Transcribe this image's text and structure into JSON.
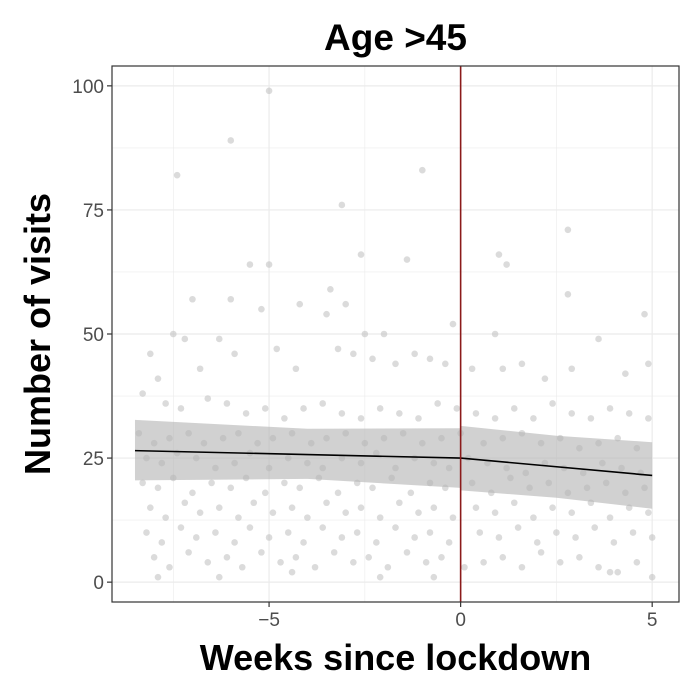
{
  "chart_data": {
    "type": "scatter",
    "title": "Age >45",
    "xlabel": "Weeks since lockdown",
    "ylabel": "Number of visits",
    "xlim": [
      -9.1,
      5.7
    ],
    "ylim": [
      -4,
      104
    ],
    "x_ticks": [
      -5,
      0,
      5
    ],
    "x_tick_labels": [
      "−5",
      "0",
      "5"
    ],
    "y_ticks": [
      0,
      25,
      50,
      75,
      100
    ],
    "y_tick_labels": [
      "0",
      "25",
      "50",
      "75",
      "100"
    ],
    "grid": true,
    "legend": "none",
    "cutoff_x": 0,
    "colors": {
      "points": "#bdbdbd",
      "ribbon": "#b3b3b3",
      "fit_line": "#000000",
      "cutoff_line": "#8b1a1a",
      "grid": "#ebebeb",
      "panel_border": "#333333"
    },
    "fit_line": [
      {
        "x": -8.5,
        "y": 26.5
      },
      {
        "x": 0,
        "y": 25
      },
      {
        "x": 5,
        "y": 21.5
      }
    ],
    "ribbon": [
      {
        "x": -8.5,
        "lo": 20.5,
        "hi": 32.7
      },
      {
        "x": -4,
        "lo": 20.8,
        "hi": 30.9
      },
      {
        "x": 0,
        "lo": 19,
        "hi": 31
      },
      {
        "x": 0,
        "lo": 18.5,
        "hi": 31.5
      },
      {
        "x": 2.5,
        "lo": 17,
        "hi": 29.5
      },
      {
        "x": 5,
        "lo": 14.8,
        "hi": 28.2
      }
    ],
    "points": [
      [
        -5.0,
        99
      ],
      [
        -6.0,
        89
      ],
      [
        -7.4,
        82
      ],
      [
        -3.1,
        76
      ],
      [
        -1.0,
        83
      ],
      [
        -2.6,
        66
      ],
      [
        -1.4,
        65
      ],
      [
        -5.5,
        64
      ],
      [
        -5.0,
        64
      ],
      [
        1.0,
        66
      ],
      [
        1.2,
        64
      ],
      [
        2.8,
        71
      ],
      [
        2.8,
        58
      ],
      [
        -3.4,
        59
      ],
      [
        -7.0,
        57
      ],
      [
        -6.0,
        57
      ],
      [
        -4.2,
        56
      ],
      [
        -3.0,
        56
      ],
      [
        -5.2,
        55
      ],
      [
        -3.5,
        54
      ],
      [
        -7.5,
        50
      ],
      [
        -7.2,
        49
      ],
      [
        -6.3,
        49
      ],
      [
        -2.5,
        50
      ],
      [
        -2.0,
        50
      ],
      [
        -0.2,
        52
      ],
      [
        0.9,
        50
      ],
      [
        4.8,
        54
      ],
      [
        -8.1,
        46
      ],
      [
        -7.9,
        41
      ],
      [
        -6.8,
        43
      ],
      [
        -5.9,
        46
      ],
      [
        -4.8,
        47
      ],
      [
        -4.3,
        43
      ],
      [
        -3.2,
        47
      ],
      [
        -2.8,
        46
      ],
      [
        -2.3,
        45
      ],
      [
        -1.7,
        44
      ],
      [
        -1.2,
        46
      ],
      [
        -0.8,
        45
      ],
      [
        -0.4,
        44
      ],
      [
        0.3,
        43
      ],
      [
        1.1,
        43
      ],
      [
        1.6,
        44
      ],
      [
        2.2,
        41
      ],
      [
        2.9,
        43
      ],
      [
        3.6,
        49
      ],
      [
        4.3,
        42
      ],
      [
        4.9,
        44
      ],
      [
        -8.3,
        38
      ],
      [
        -7.7,
        36
      ],
      [
        -7.3,
        35
      ],
      [
        -6.6,
        37
      ],
      [
        -6.1,
        36
      ],
      [
        -5.6,
        34
      ],
      [
        -5.1,
        35
      ],
      [
        -4.6,
        33
      ],
      [
        -4.1,
        35
      ],
      [
        -3.6,
        36
      ],
      [
        -3.1,
        34
      ],
      [
        -2.6,
        33
      ],
      [
        -2.1,
        35
      ],
      [
        -1.6,
        34
      ],
      [
        -1.1,
        33
      ],
      [
        -0.6,
        36
      ],
      [
        -0.1,
        35
      ],
      [
        0.4,
        34
      ],
      [
        0.9,
        33
      ],
      [
        1.4,
        35
      ],
      [
        1.9,
        33
      ],
      [
        2.4,
        36
      ],
      [
        2.9,
        34
      ],
      [
        3.4,
        33
      ],
      [
        3.9,
        35
      ],
      [
        4.4,
        34
      ],
      [
        4.9,
        33
      ],
      [
        -8.4,
        30
      ],
      [
        -8.0,
        28
      ],
      [
        -7.6,
        29
      ],
      [
        -7.1,
        30
      ],
      [
        -6.7,
        28
      ],
      [
        -6.2,
        29
      ],
      [
        -5.8,
        30
      ],
      [
        -5.3,
        28
      ],
      [
        -4.9,
        29
      ],
      [
        -4.4,
        30
      ],
      [
        -3.9,
        28
      ],
      [
        -3.5,
        29
      ],
      [
        -3.0,
        30
      ],
      [
        -2.5,
        28
      ],
      [
        -2.0,
        29
      ],
      [
        -1.5,
        30
      ],
      [
        -1.0,
        28
      ],
      [
        -0.5,
        29
      ],
      [
        0.0,
        30
      ],
      [
        0.6,
        28
      ],
      [
        1.1,
        29
      ],
      [
        1.6,
        30
      ],
      [
        2.1,
        28
      ],
      [
        2.6,
        29
      ],
      [
        3.1,
        27
      ],
      [
        3.6,
        28
      ],
      [
        4.1,
        29
      ],
      [
        4.6,
        27
      ],
      [
        -8.2,
        25
      ],
      [
        -7.8,
        24
      ],
      [
        -7.4,
        26
      ],
      [
        -6.9,
        25
      ],
      [
        -6.4,
        23
      ],
      [
        -5.9,
        24
      ],
      [
        -5.5,
        26
      ],
      [
        -5.0,
        23
      ],
      [
        -4.5,
        25
      ],
      [
        -4.0,
        24
      ],
      [
        -3.6,
        23
      ],
      [
        -3.1,
        25
      ],
      [
        -2.6,
        24
      ],
      [
        -2.2,
        26
      ],
      [
        -1.7,
        23
      ],
      [
        -1.2,
        25
      ],
      [
        -0.7,
        24
      ],
      [
        -0.3,
        23
      ],
      [
        0.2,
        25
      ],
      [
        0.7,
        24
      ],
      [
        1.2,
        23
      ],
      [
        1.7,
        22
      ],
      [
        2.2,
        24
      ],
      [
        2.7,
        23
      ],
      [
        3.2,
        22
      ],
      [
        3.7,
        24
      ],
      [
        4.2,
        23
      ],
      [
        4.7,
        22
      ],
      [
        -8.3,
        20
      ],
      [
        -7.9,
        19
      ],
      [
        -7.5,
        21
      ],
      [
        -7.0,
        18
      ],
      [
        -6.5,
        20
      ],
      [
        -6.0,
        19
      ],
      [
        -5.6,
        21
      ],
      [
        -5.1,
        18
      ],
      [
        -4.6,
        20
      ],
      [
        -4.2,
        19
      ],
      [
        -3.7,
        21
      ],
      [
        -3.2,
        18
      ],
      [
        -2.7,
        20
      ],
      [
        -2.3,
        19
      ],
      [
        -1.8,
        21
      ],
      [
        -1.3,
        18
      ],
      [
        -0.8,
        20
      ],
      [
        -0.4,
        19
      ],
      [
        0.3,
        20
      ],
      [
        0.8,
        18
      ],
      [
        1.3,
        21
      ],
      [
        1.8,
        19
      ],
      [
        2.3,
        20
      ],
      [
        2.8,
        18
      ],
      [
        3.3,
        19
      ],
      [
        3.8,
        20
      ],
      [
        4.3,
        18
      ],
      [
        4.8,
        19
      ],
      [
        -8.1,
        15
      ],
      [
        -7.7,
        13
      ],
      [
        -7.2,
        16
      ],
      [
        -6.8,
        14
      ],
      [
        -6.3,
        15
      ],
      [
        -5.8,
        13
      ],
      [
        -5.4,
        16
      ],
      [
        -4.9,
        14
      ],
      [
        -4.4,
        15
      ],
      [
        -4.0,
        13
      ],
      [
        -3.5,
        16
      ],
      [
        -3.0,
        14
      ],
      [
        -2.6,
        15
      ],
      [
        -2.1,
        13
      ],
      [
        -1.6,
        16
      ],
      [
        -1.1,
        14
      ],
      [
        -0.7,
        15
      ],
      [
        -0.2,
        13
      ],
      [
        0.4,
        15
      ],
      [
        0.9,
        14
      ],
      [
        1.4,
        16
      ],
      [
        1.9,
        13
      ],
      [
        2.4,
        15
      ],
      [
        2.9,
        14
      ],
      [
        3.4,
        16
      ],
      [
        3.9,
        13
      ],
      [
        4.4,
        15
      ],
      [
        4.9,
        14
      ],
      [
        -8.2,
        10
      ],
      [
        -7.8,
        8
      ],
      [
        -7.3,
        11
      ],
      [
        -6.9,
        9
      ],
      [
        -6.4,
        10
      ],
      [
        -5.9,
        8
      ],
      [
        -5.5,
        11
      ],
      [
        -5.0,
        9
      ],
      [
        -4.5,
        10
      ],
      [
        -4.1,
        8
      ],
      [
        -3.6,
        11
      ],
      [
        -3.1,
        9
      ],
      [
        -2.7,
        10
      ],
      [
        -2.2,
        8
      ],
      [
        -1.7,
        11
      ],
      [
        -1.2,
        9
      ],
      [
        -0.8,
        10
      ],
      [
        -0.3,
        8
      ],
      [
        0.5,
        10
      ],
      [
        1.0,
        9
      ],
      [
        1.5,
        11
      ],
      [
        2.0,
        8
      ],
      [
        2.5,
        10
      ],
      [
        3.0,
        9
      ],
      [
        3.5,
        11
      ],
      [
        4.0,
        8
      ],
      [
        4.5,
        10
      ],
      [
        5.0,
        9
      ],
      [
        -8.0,
        5
      ],
      [
        -7.6,
        3
      ],
      [
        -7.1,
        6
      ],
      [
        -6.6,
        4
      ],
      [
        -6.1,
        5
      ],
      [
        -5.7,
        3
      ],
      [
        -5.2,
        6
      ],
      [
        -4.7,
        4
      ],
      [
        -4.3,
        5
      ],
      [
        -3.8,
        3
      ],
      [
        -3.3,
        6
      ],
      [
        -2.8,
        4
      ],
      [
        -2.4,
        5
      ],
      [
        -1.9,
        3
      ],
      [
        -1.4,
        6
      ],
      [
        -0.9,
        4
      ],
      [
        -0.5,
        5
      ],
      [
        0.1,
        3
      ],
      [
        0.6,
        4
      ],
      [
        1.1,
        5
      ],
      [
        1.6,
        3
      ],
      [
        2.1,
        6
      ],
      [
        2.6,
        4
      ],
      [
        3.1,
        5
      ],
      [
        3.6,
        3
      ],
      [
        4.1,
        2
      ],
      [
        4.6,
        4
      ],
      [
        5.0,
        1
      ],
      [
        -7.9,
        1
      ],
      [
        -6.3,
        1
      ],
      [
        -4.4,
        2
      ],
      [
        -2.1,
        1
      ],
      [
        -0.7,
        1
      ],
      [
        3.9,
        2
      ]
    ]
  }
}
